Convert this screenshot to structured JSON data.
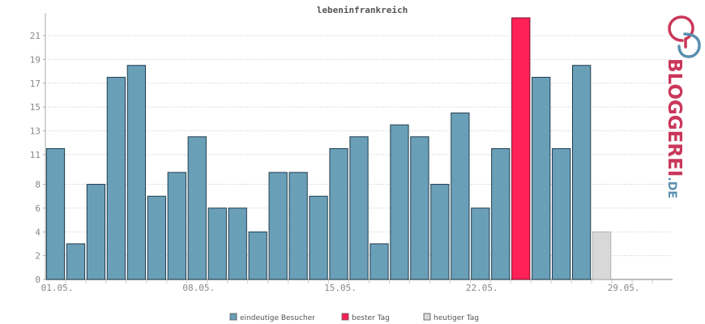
{
  "chart_data": {
    "type": "bar",
    "title": "lebeninfrankreich",
    "xlabel": "",
    "ylabel": "",
    "ylim": [
      0,
      22
    ],
    "yticks": [
      "0",
      "2",
      "4",
      "6",
      "8",
      "11",
      "13",
      "15",
      "17",
      "19",
      "21"
    ],
    "yticks_values": [
      0,
      2,
      4,
      6,
      8,
      10.5,
      12.5,
      14.5,
      16.5,
      18.5,
      20.5
    ],
    "xticks": [
      {
        "label": "01.05.",
        "index": 0
      },
      {
        "label": "08.05.",
        "index": 7
      },
      {
        "label": "15.05.",
        "index": 14
      },
      {
        "label": "22.05.",
        "index": 21
      },
      {
        "label": "29.05.",
        "index": 28
      }
    ],
    "values": [
      11,
      3,
      8,
      17,
      18,
      7,
      9,
      12,
      6,
      6,
      4,
      9,
      9,
      7,
      11,
      12,
      3,
      13,
      12,
      8,
      14,
      6,
      11,
      22,
      17,
      11,
      18,
      4
    ],
    "best_index": 23,
    "today_index": 27,
    "empty_slots": 3,
    "grid": true,
    "legend_position": "bottom",
    "legend": [
      {
        "key": "visitors",
        "label": "eindeutige Besucher",
        "color": "#6a9fb8"
      },
      {
        "key": "best",
        "label": "bester Tag",
        "color": "#ff2158"
      },
      {
        "key": "today",
        "label": "heutiger Tag",
        "color": "#d8d8d8"
      }
    ],
    "colors": {
      "normal": "#6a9fb8",
      "best": "#ff2158",
      "today": "#d8d8d8"
    }
  },
  "logo": {
    "brand": "BLOGGEREI",
    "suffix": ".DE",
    "icon": "bloggerei-logo-icon",
    "brand_color": "#c9375a",
    "suffix_color": "#5b8fb0"
  }
}
